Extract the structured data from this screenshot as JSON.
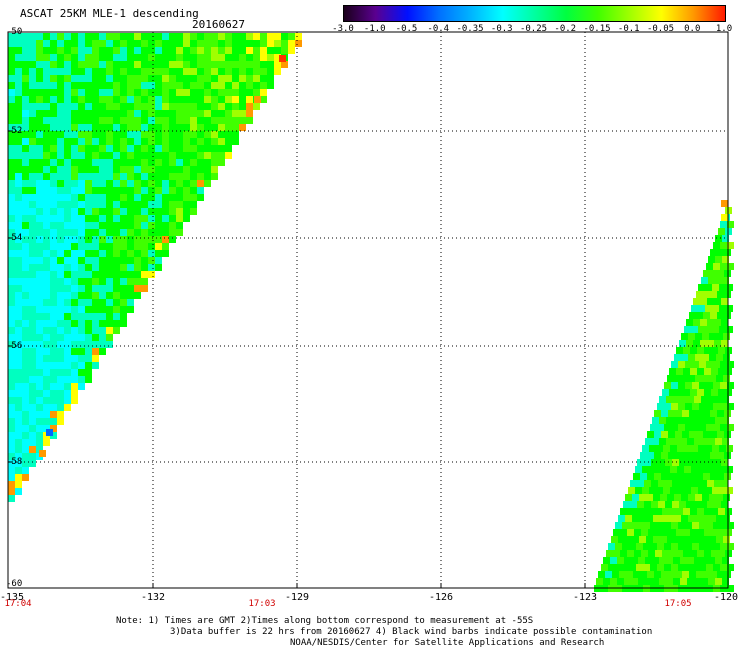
{
  "header": {
    "title": "ASCAT 25KM MLE-1 descending",
    "date": "20160627"
  },
  "colorbar": {
    "labels": [
      "-3.0",
      "-1.0",
      "-0.5",
      "-0.4",
      "-0.35",
      "-0.3",
      "-0.25",
      "-0.2",
      "-0.15",
      "-0.1",
      "-0.05",
      "0.0",
      "1.0"
    ],
    "colors": [
      "#1a001a",
      "#5a0090",
      "#0010ff",
      "#0070ff",
      "#00b4ff",
      "#00ffff",
      "#00ffa0",
      "#00ff40",
      "#40ff00",
      "#a0ff00",
      "#ffff00",
      "#ff9900",
      "#ff1a00"
    ]
  },
  "map": {
    "lat_labels": [
      "-50",
      "-52",
      "-54",
      "-56",
      "-58",
      "-60"
    ],
    "lon_labels": [
      "-135",
      "-132",
      "-129",
      "-126",
      "-123",
      "-120"
    ],
    "time_labels": [
      "17:04",
      "17:03",
      "17:05"
    ],
    "palette": {
      "cyan": "#00ffff",
      "aqua": "#00ffc0",
      "green": "#00ff00",
      "lime": "#40ff00",
      "ylgreen": "#a0ff00",
      "yellow": "#ffff00",
      "orange": "#ff9900",
      "red": "#ff3300",
      "blue": "#0066ff"
    }
  },
  "notes": {
    "line1": "Note: 1) Times are GMT 2)Times along bottom correspond to measurement at -55S",
    "line2": "3)Data buffer is 22 hrs from 20160627 4) Black wind barbs indicate possible contamination",
    "line3": "NOAA/NESDIS/Center for Satellite Applications and Research"
  }
}
